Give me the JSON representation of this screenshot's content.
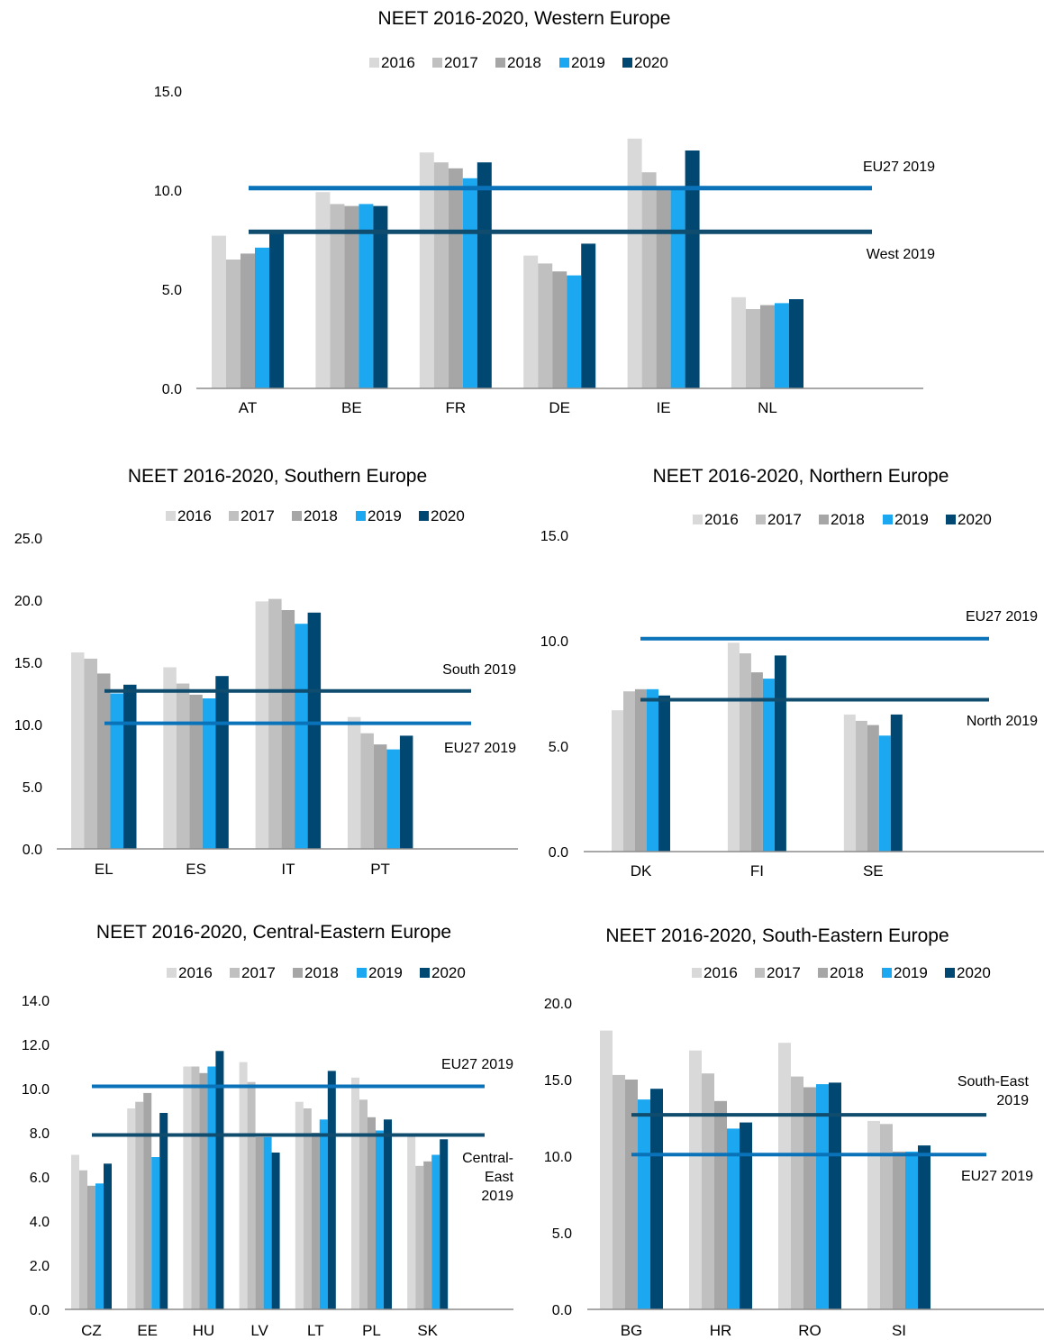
{
  "chart_data": [
    {
      "id": "west",
      "type": "bar",
      "title": "NEET 2016-2020, Western Europe",
      "categories": [
        "AT",
        "BE",
        "FR",
        "DE",
        "IE",
        "NL"
      ],
      "series": [
        {
          "name": "2016",
          "color": "#d9d9d9",
          "values": [
            7.7,
            9.9,
            11.9,
            6.7,
            12.6,
            4.6
          ]
        },
        {
          "name": "2017",
          "color": "#c0c0c0",
          "values": [
            6.5,
            9.3,
            11.4,
            6.3,
            10.9,
            4.0
          ]
        },
        {
          "name": "2018",
          "color": "#a6a6a6",
          "values": [
            6.8,
            9.2,
            11.1,
            5.9,
            10.1,
            4.2
          ]
        },
        {
          "name": "2019",
          "color": "#1ba8f0",
          "values": [
            7.1,
            9.3,
            10.6,
            5.7,
            10.1,
            4.3
          ]
        },
        {
          "name": "2020",
          "color": "#004872",
          "values": [
            8.0,
            9.2,
            11.4,
            7.3,
            12.0,
            4.5
          ]
        }
      ],
      "ylim": [
        0,
        15
      ],
      "yticks": [
        "0.0",
        "5.0",
        "10.0",
        "15.0"
      ],
      "reference_lines": [
        {
          "label": "EU27 2019",
          "value": 10.1,
          "color": "#0a72b8",
          "label_position": "above"
        },
        {
          "label": "West 2019",
          "value": 7.9,
          "color": "#0f4c6e",
          "label_position": "below"
        }
      ],
      "legend_position": "top"
    },
    {
      "id": "south",
      "type": "bar",
      "title": "NEET 2016-2020, Southern Europe",
      "categories": [
        "EL",
        "ES",
        "IT",
        "PT"
      ],
      "series": [
        {
          "name": "2016",
          "color": "#d9d9d9",
          "values": [
            15.8,
            14.6,
            19.9,
            10.6
          ]
        },
        {
          "name": "2017",
          "color": "#c0c0c0",
          "values": [
            15.3,
            13.3,
            20.1,
            9.3
          ]
        },
        {
          "name": "2018",
          "color": "#a6a6a6",
          "values": [
            14.1,
            12.4,
            19.2,
            8.4
          ]
        },
        {
          "name": "2019",
          "color": "#1ba8f0",
          "values": [
            12.5,
            12.1,
            18.1,
            8.0
          ]
        },
        {
          "name": "2020",
          "color": "#004872",
          "values": [
            13.2,
            13.9,
            19.0,
            9.1
          ]
        }
      ],
      "ylim": [
        0,
        25
      ],
      "yticks": [
        "0.0",
        "5.0",
        "10.0",
        "15.0",
        "20.0",
        "25.0"
      ],
      "reference_lines": [
        {
          "label": "South 2019",
          "value": 12.7,
          "color": "#0f4c6e",
          "label_position": "above"
        },
        {
          "label": "EU27 2019",
          "value": 10.1,
          "color": "#0a72b8",
          "label_position": "below"
        }
      ],
      "legend_position": "top"
    },
    {
      "id": "north",
      "type": "bar",
      "title": "NEET 2016-2020, Northern Europe",
      "categories": [
        "DK",
        "FI",
        "SE"
      ],
      "series": [
        {
          "name": "2016",
          "color": "#d9d9d9",
          "values": [
            6.7,
            9.9,
            6.5
          ]
        },
        {
          "name": "2017",
          "color": "#c0c0c0",
          "values": [
            7.6,
            9.4,
            6.2
          ]
        },
        {
          "name": "2018",
          "color": "#a6a6a6",
          "values": [
            7.7,
            8.5,
            6.0
          ]
        },
        {
          "name": "2019",
          "color": "#1ba8f0",
          "values": [
            7.7,
            8.2,
            5.5
          ]
        },
        {
          "name": "2020",
          "color": "#004872",
          "values": [
            7.4,
            9.3,
            6.5
          ]
        }
      ],
      "ylim": [
        0,
        15
      ],
      "yticks": [
        "0.0",
        "5.0",
        "10.0",
        "15.0"
      ],
      "reference_lines": [
        {
          "label": "EU27 2019",
          "value": 10.1,
          "color": "#0a72b8",
          "label_position": "above"
        },
        {
          "label": "North 2019",
          "value": 7.2,
          "color": "#0f4c6e",
          "label_position": "below"
        }
      ],
      "legend_position": "top"
    },
    {
      "id": "central-east",
      "type": "bar",
      "title": "NEET 2016-2020, Central-Eastern Europe",
      "categories": [
        "CZ",
        "EE",
        "HU",
        "LV",
        "LT",
        "PL",
        "SK"
      ],
      "series": [
        {
          "name": "2016",
          "color": "#d9d9d9",
          "values": [
            7.0,
            9.1,
            11.0,
            11.2,
            9.4,
            10.5,
            7.9
          ]
        },
        {
          "name": "2017",
          "color": "#c0c0c0",
          "values": [
            6.3,
            9.4,
            11.0,
            10.3,
            9.1,
            9.5,
            6.5
          ]
        },
        {
          "name": "2018",
          "color": "#a6a6a6",
          "values": [
            5.6,
            9.8,
            10.7,
            7.8,
            8.0,
            8.7,
            6.7
          ]
        },
        {
          "name": "2019",
          "color": "#1ba8f0",
          "values": [
            5.7,
            6.9,
            11.0,
            7.8,
            8.6,
            8.1,
            7.0
          ]
        },
        {
          "name": "2020",
          "color": "#004872",
          "values": [
            6.6,
            8.9,
            11.7,
            7.1,
            10.8,
            8.6,
            7.7
          ]
        }
      ],
      "ylim": [
        0,
        14
      ],
      "yticks": [
        "0.0",
        "2.0",
        "4.0",
        "6.0",
        "8.0",
        "10.0",
        "12.0",
        "14.0"
      ],
      "reference_lines": [
        {
          "label": "EU27 2019",
          "value": 10.1,
          "color": "#0a72b8",
          "label_position": "above"
        },
        {
          "label": "Central-East 2019",
          "label_lines": [
            "Central-",
            "East",
            "2019"
          ],
          "value": 7.9,
          "color": "#0f4c6e",
          "label_position": "below"
        }
      ],
      "legend_position": "top"
    },
    {
      "id": "south-east",
      "type": "bar",
      "title": "NEET 2016-2020, South-Eastern Europe",
      "categories": [
        "BG",
        "HR",
        "RO",
        "SI"
      ],
      "series": [
        {
          "name": "2016",
          "color": "#d9d9d9",
          "values": [
            18.2,
            16.9,
            17.4,
            12.3
          ]
        },
        {
          "name": "2017",
          "color": "#c0c0c0",
          "values": [
            15.3,
            15.4,
            15.2,
            12.1
          ]
        },
        {
          "name": "2018",
          "color": "#a6a6a6",
          "values": [
            15.0,
            13.6,
            14.5,
            10.3
          ]
        },
        {
          "name": "2019",
          "color": "#1ba8f0",
          "values": [
            13.7,
            11.8,
            14.7,
            10.3
          ]
        },
        {
          "name": "2020",
          "color": "#004872",
          "values": [
            14.4,
            12.2,
            14.8,
            10.7
          ]
        }
      ],
      "ylim": [
        0,
        20
      ],
      "yticks": [
        "0.0",
        "5.0",
        "10.0",
        "15.0",
        "20.0"
      ],
      "reference_lines": [
        {
          "label": "South-East 2019",
          "label_lines": [
            "South-East",
            "2019"
          ],
          "value": 12.7,
          "color": "#0f4c6e",
          "label_position": "above"
        },
        {
          "label": "EU27 2019",
          "value": 10.1,
          "color": "#0a72b8",
          "label_position": "below"
        }
      ],
      "legend_position": "top"
    }
  ]
}
